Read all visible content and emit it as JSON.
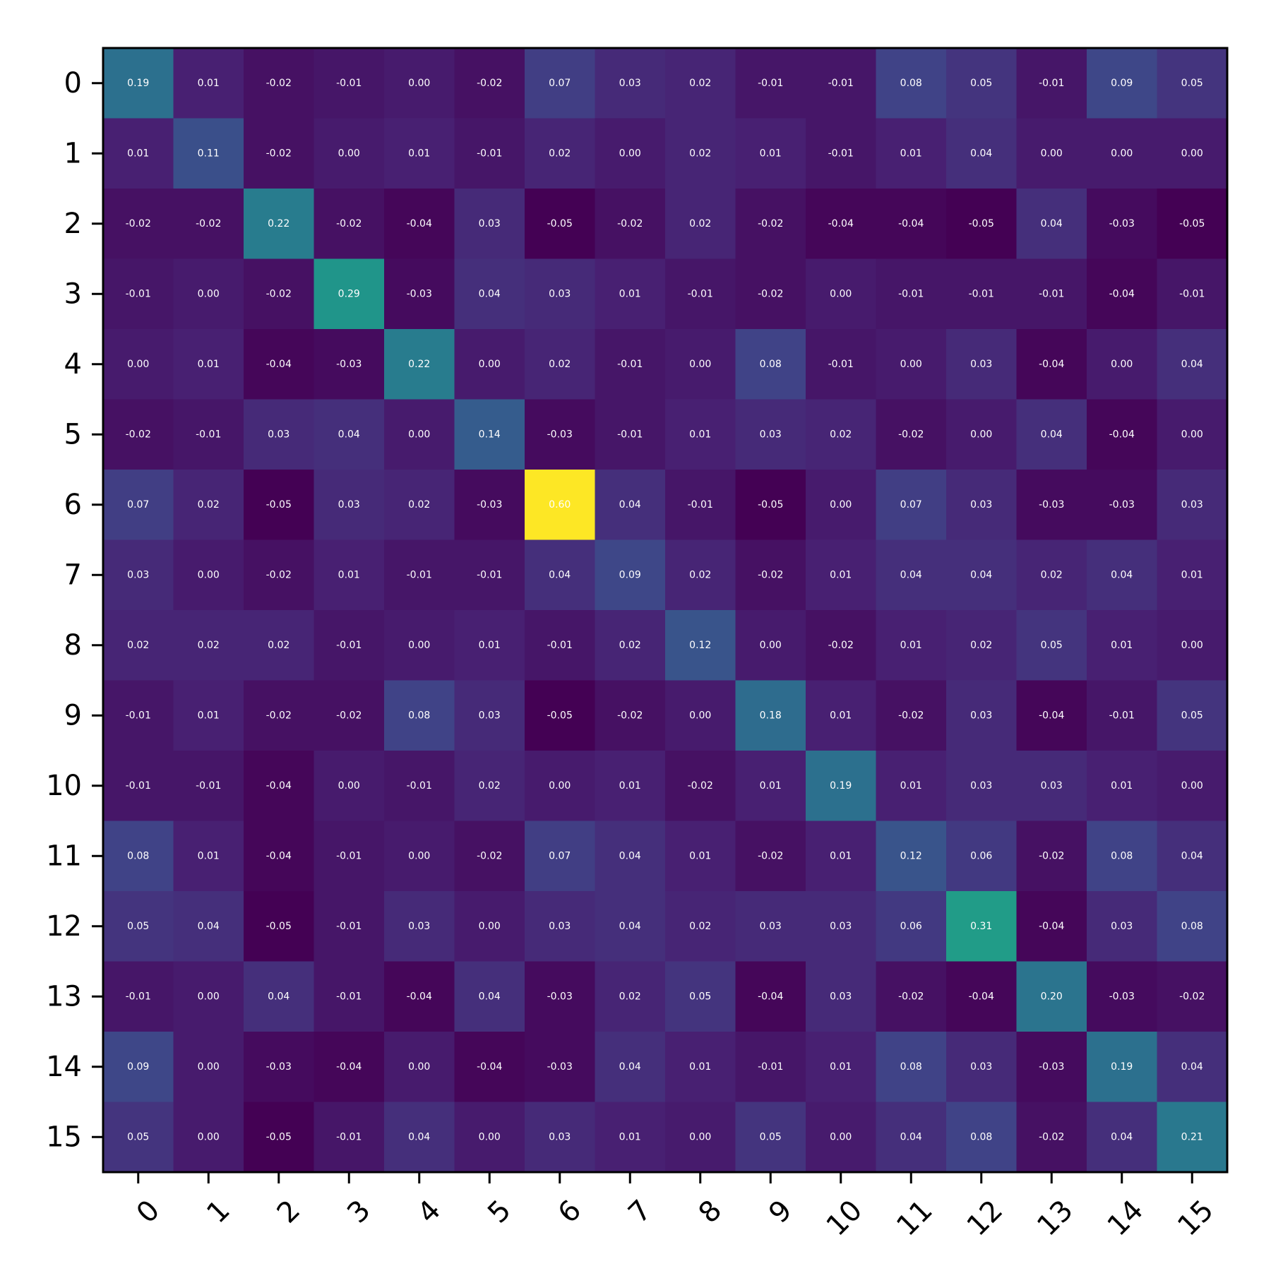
{
  "chart_data": {
    "type": "heatmap",
    "title": "",
    "xlabel": "",
    "ylabel": "",
    "x_categories": [
      "0",
      "1",
      "2",
      "3",
      "4",
      "5",
      "6",
      "7",
      "8",
      "9",
      "10",
      "11",
      "12",
      "13",
      "14",
      "15"
    ],
    "y_categories": [
      "0",
      "1",
      "2",
      "3",
      "4",
      "5",
      "6",
      "7",
      "8",
      "9",
      "10",
      "11",
      "12",
      "13",
      "14",
      "15"
    ],
    "colormap": "viridis",
    "vmin": -0.05,
    "vmax": 0.6,
    "values": [
      [
        0.19,
        0.01,
        -0.02,
        -0.01,
        -0.0,
        -0.02,
        0.07,
        0.03,
        0.02,
        -0.01,
        -0.01,
        0.08,
        0.05,
        -0.01,
        0.09,
        0.05
      ],
      [
        0.01,
        0.11,
        -0.02,
        0.0,
        0.01,
        -0.01,
        0.02,
        -0.0,
        0.02,
        0.01,
        -0.01,
        0.01,
        0.04,
        -0.0,
        0.0,
        0.0
      ],
      [
        -0.02,
        -0.02,
        0.22,
        -0.02,
        -0.04,
        0.03,
        -0.05,
        -0.02,
        0.02,
        -0.02,
        -0.04,
        -0.04,
        -0.05,
        0.04,
        -0.03,
        -0.05
      ],
      [
        -0.01,
        0.0,
        -0.02,
        0.29,
        -0.03,
        0.04,
        0.03,
        0.01,
        -0.01,
        -0.02,
        -0.0,
        -0.01,
        -0.01,
        -0.01,
        -0.04,
        -0.01
      ],
      [
        -0.0,
        0.01,
        -0.04,
        -0.03,
        0.22,
        -0.0,
        0.02,
        -0.01,
        -0.0,
        0.08,
        -0.01,
        -0.0,
        0.03,
        -0.04,
        -0.0,
        0.04
      ],
      [
        -0.02,
        -0.01,
        0.03,
        0.04,
        -0.0,
        0.14,
        -0.03,
        -0.01,
        0.01,
        0.03,
        0.02,
        -0.02,
        0.0,
        0.04,
        -0.04,
        -0.0
      ],
      [
        0.07,
        0.02,
        -0.05,
        0.03,
        0.02,
        -0.03,
        0.6,
        0.04,
        -0.01,
        -0.05,
        0.0,
        0.07,
        0.03,
        -0.03,
        -0.03,
        0.03
      ],
      [
        0.03,
        -0.0,
        -0.02,
        0.01,
        -0.01,
        -0.01,
        0.04,
        0.09,
        0.02,
        -0.02,
        0.01,
        0.04,
        0.04,
        0.02,
        0.04,
        0.01
      ],
      [
        0.02,
        0.02,
        0.02,
        -0.01,
        -0.0,
        0.01,
        -0.01,
        0.02,
        0.12,
        0.0,
        -0.02,
        0.01,
        0.02,
        0.05,
        0.01,
        0.0
      ],
      [
        -0.01,
        0.01,
        -0.02,
        -0.02,
        0.08,
        0.03,
        -0.05,
        -0.02,
        0.0,
        0.18,
        0.01,
        -0.02,
        0.03,
        -0.04,
        -0.01,
        0.05
      ],
      [
        -0.01,
        -0.01,
        -0.04,
        -0.0,
        -0.01,
        0.02,
        0.0,
        0.01,
        -0.02,
        0.01,
        0.19,
        0.01,
        0.03,
        0.03,
        0.01,
        0.0
      ],
      [
        0.08,
        0.01,
        -0.04,
        -0.01,
        -0.0,
        -0.02,
        0.07,
        0.04,
        0.01,
        -0.02,
        0.01,
        0.12,
        0.06,
        -0.02,
        0.08,
        0.04
      ],
      [
        0.05,
        0.04,
        -0.05,
        -0.01,
        0.03,
        0.0,
        0.03,
        0.04,
        0.02,
        0.03,
        0.03,
        0.06,
        0.31,
        -0.04,
        0.03,
        0.08
      ],
      [
        -0.01,
        -0.0,
        0.04,
        -0.01,
        -0.04,
        0.04,
        -0.03,
        0.02,
        0.05,
        -0.04,
        0.03,
        -0.02,
        -0.04,
        0.2,
        -0.03,
        -0.02
      ],
      [
        0.09,
        0.0,
        -0.03,
        -0.04,
        -0.0,
        -0.04,
        -0.03,
        0.04,
        0.01,
        -0.01,
        0.01,
        0.08,
        0.03,
        -0.03,
        0.19,
        0.04
      ],
      [
        0.05,
        0.0,
        -0.05,
        -0.01,
        0.04,
        -0.0,
        0.03,
        0.01,
        0.0,
        0.05,
        0.0,
        0.04,
        0.08,
        -0.02,
        0.04,
        0.21
      ]
    ],
    "grid": false,
    "legend": "none"
  }
}
